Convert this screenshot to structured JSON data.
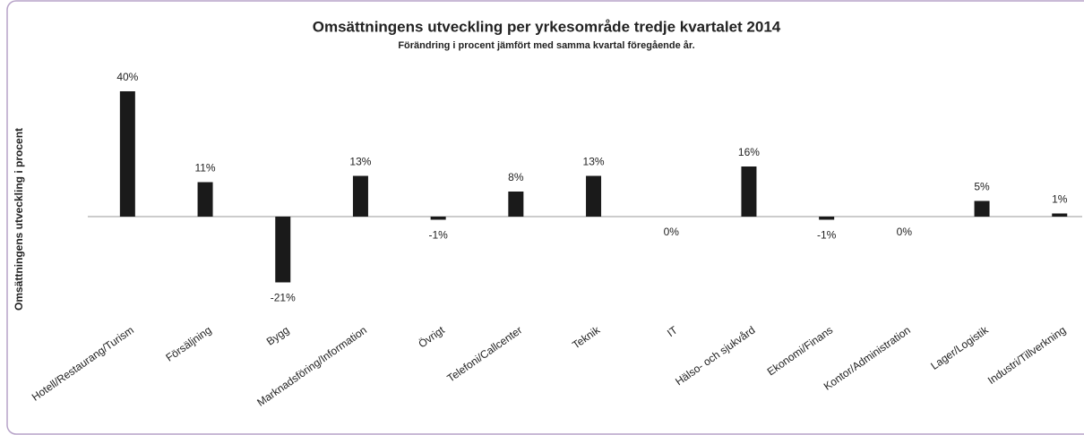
{
  "chart_data": {
    "type": "bar",
    "title": "Omsättningens utveckling per yrkesområde tredje kvartalet 2014",
    "subtitle": "Förändring i procent jämfört med samma kvartal föregående år.",
    "y_label": "Omsättningens utveckling i procent",
    "categories": [
      "Hotell/Restaurang/Turism",
      "Försäljning",
      "Bygg",
      "Marknadsföring/Information",
      "Övrigt",
      "Telefoni/Callcenter",
      "Teknik",
      "IT",
      "Hälso- och sjukvård",
      "Ekonomi/Finans",
      "Kontor/Administration",
      "Lager/Logistik",
      "Industri/Tillverkning"
    ],
    "values": [
      40,
      11,
      -21,
      13,
      -1,
      8,
      13,
      0,
      16,
      -1,
      0,
      5,
      1
    ],
    "value_labels": [
      "40%",
      "11%",
      "-21%",
      "13%",
      "-1%",
      "8%",
      "13%",
      "0%",
      "16%",
      "-1%",
      "0%",
      "5%",
      "1%"
    ],
    "color": "#1a1a1a"
  }
}
